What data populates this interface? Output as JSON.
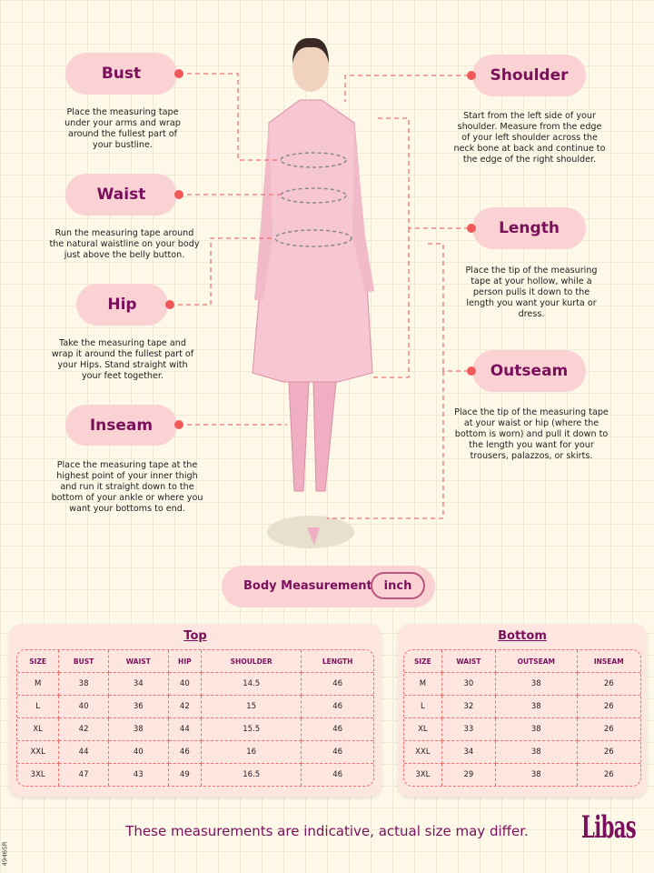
{
  "labels": {
    "bust": {
      "title": "Bust",
      "desc": "Place the measuring tape under your arms and wrap around the fullest part of your bustline."
    },
    "waist": {
      "title": "Waist",
      "desc": "Run the measuring tape around the natural waistline on your body just above the belly button."
    },
    "hip": {
      "title": "Hip",
      "desc": "Take the measuring tape and wrap it around the fullest part of your Hips. Stand straight with your feet together."
    },
    "inseam": {
      "title": "Inseam",
      "desc": "Place the measuring tape at the highest point of your inner thigh and run it straight down to the bottom of your ankle or where you want your bottoms to end."
    },
    "shoulder": {
      "title": "Shoulder",
      "desc": "Start from the left side of your shoulder. Measure from the edge of your left shoulder across the neck bone at back and continue to the edge of the right shoulder."
    },
    "length": {
      "title": "Length",
      "desc": "Place the tip of the measuring tape at your hollow, while a person pulls it down to the length you want your kurta or dress."
    },
    "outseam": {
      "title": "Outseam",
      "desc": "Place the tip of the measuring tape at your waist or hip (where the bottom is worn) and pull it down to the length you want for your trousers, palazzos, or skirts."
    }
  },
  "unit_bar": {
    "title": "Body Measurement",
    "unit": "inch"
  },
  "top_table": {
    "title": "Top",
    "headers": [
      "SIZE",
      "BUST",
      "WAIST",
      "HIP",
      "SHOULDER",
      "LENGTH"
    ],
    "rows": [
      [
        "M",
        "38",
        "34",
        "40",
        "14.5",
        "46"
      ],
      [
        "L",
        "40",
        "36",
        "42",
        "15",
        "46"
      ],
      [
        "XL",
        "42",
        "38",
        "44",
        "15.5",
        "46"
      ],
      [
        "XXL",
        "44",
        "40",
        "46",
        "16",
        "46"
      ],
      [
        "3XL",
        "47",
        "43",
        "49",
        "16.5",
        "46"
      ]
    ]
  },
  "bottom_table": {
    "title": "Bottom",
    "headers": [
      "SIZE",
      "WAIST",
      "OUTSEAM",
      "INSEAM"
    ],
    "rows": [
      [
        "M",
        "30",
        "38",
        "26"
      ],
      [
        "L",
        "32",
        "38",
        "26"
      ],
      [
        "XL",
        "33",
        "38",
        "26"
      ],
      [
        "XXL",
        "34",
        "38",
        "26"
      ],
      [
        "3XL",
        "29",
        "38",
        "26"
      ]
    ]
  },
  "footer": {
    "note": "These measurements are indicative, actual size may differ.",
    "logo": "Libas",
    "code": "4946SR"
  },
  "colors": {
    "accent": "#7a0f5c",
    "pill": "#fbd2d4",
    "dash": "#f07070",
    "background": "#fdf8e8"
  }
}
